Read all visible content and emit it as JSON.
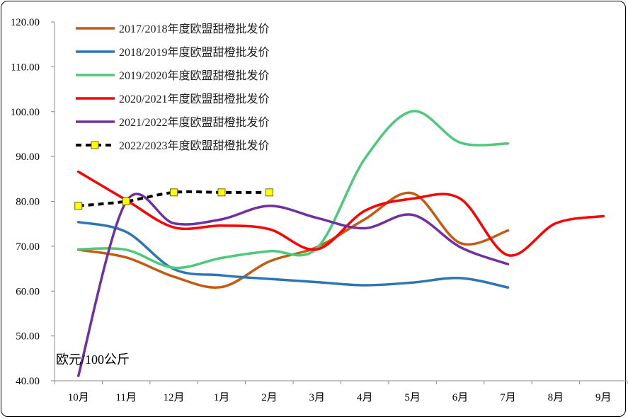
{
  "chart_data": {
    "type": "line",
    "title": "",
    "ylabel": "欧元/100公斤",
    "xlabel": "",
    "ylim": [
      40,
      120
    ],
    "yticks": [
      40,
      50,
      60,
      70,
      80,
      90,
      100,
      110,
      120
    ],
    "ytick_labels": [
      "40.00",
      "50.00",
      "60.00",
      "70.00",
      "80.00",
      "90.00",
      "100.00",
      "110.00",
      "120.00"
    ],
    "categories": [
      "10月",
      "11月",
      "12月",
      "1月",
      "2月",
      "3月",
      "4月",
      "5月",
      "6月",
      "7月",
      "8月",
      "9月"
    ],
    "grid": false,
    "legend_position": "top-left",
    "series": [
      {
        "name": "2017/2018年度欧盟甜橙批发价",
        "color": "#c55a11",
        "dashed": false,
        "markers": false,
        "values": [
          69.2,
          67.5,
          63.2,
          60.9,
          66.6,
          69.8,
          76.0,
          81.8,
          70.7,
          73.5,
          null,
          null
        ]
      },
      {
        "name": "2018/2019年度欧盟甜橙批发价",
        "color": "#2e75b6",
        "dashed": false,
        "markers": false,
        "values": [
          75.4,
          73.2,
          64.9,
          63.5,
          62.7,
          62.0,
          61.3,
          61.9,
          62.9,
          60.8,
          null,
          null
        ]
      },
      {
        "name": "2019/2020年度欧盟甜橙批发价",
        "color": "#4ec97b",
        "dashed": false,
        "markers": false,
        "values": [
          69.3,
          69.2,
          65.2,
          67.4,
          68.9,
          69.6,
          89.5,
          100.1,
          93.1,
          92.9,
          null,
          null
        ]
      },
      {
        "name": "2020/2021年度欧盟甜橙批发价",
        "color": "#ff0000",
        "dashed": false,
        "markers": false,
        "values": [
          86.6,
          80.3,
          74.2,
          74.6,
          73.8,
          69.3,
          77.9,
          80.6,
          80.6,
          68.0,
          75.1,
          76.7
        ]
      },
      {
        "name": "2021/2022年度欧盟甜橙批发价",
        "color": "#7030a0",
        "dashed": false,
        "markers": false,
        "values": [
          41.1,
          79.9,
          75.1,
          76.0,
          79.0,
          76.3,
          74.0,
          77.0,
          69.8,
          66.0,
          null,
          null
        ]
      },
      {
        "name": "2022/2023年度欧盟甜橙批发价",
        "color": "#000000",
        "dashed": true,
        "markers": true,
        "marker_color": "#ffff00",
        "values": [
          79.0,
          80.0,
          82.0,
          82.0,
          82.0,
          null,
          null,
          null,
          null,
          null,
          null,
          null
        ]
      }
    ]
  }
}
